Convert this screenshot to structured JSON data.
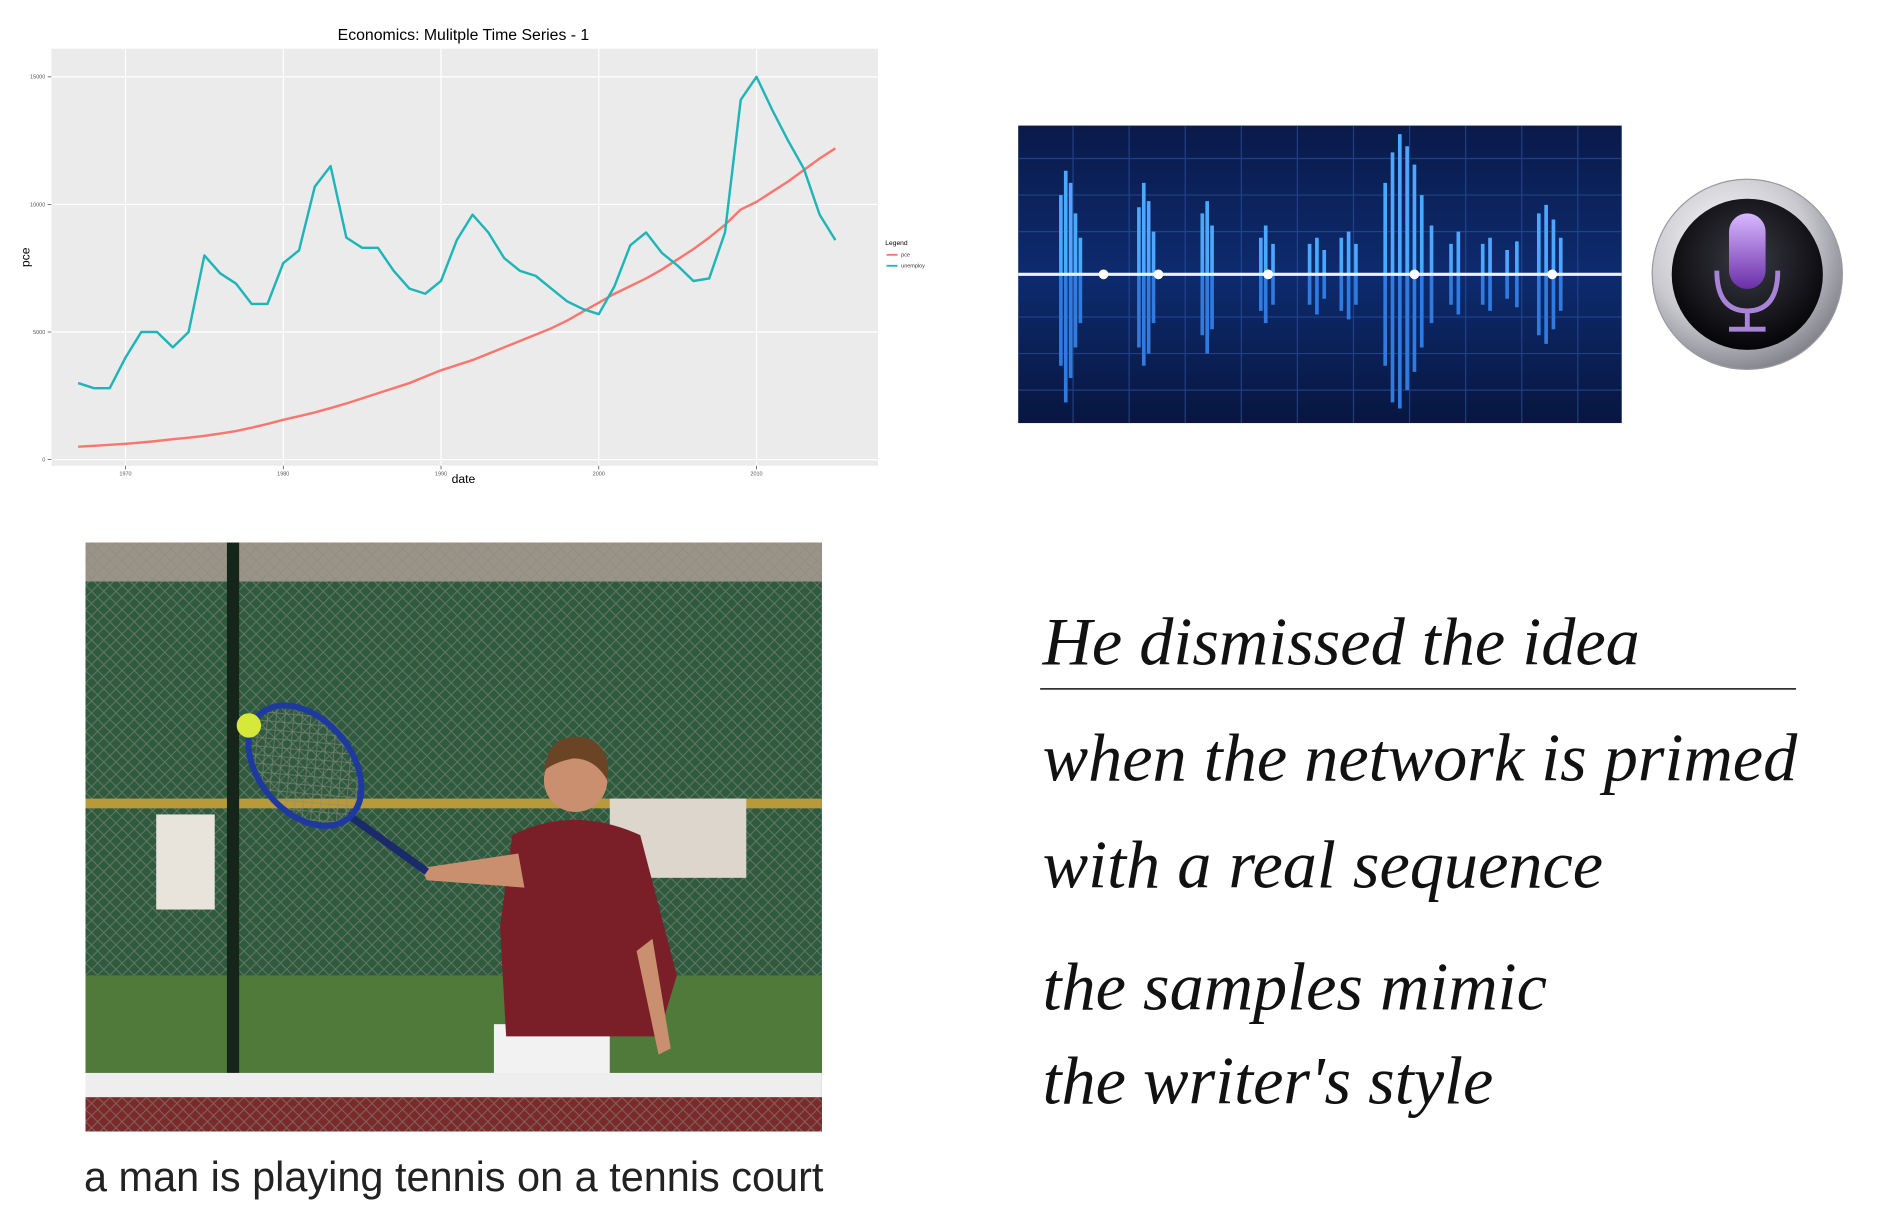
{
  "chart_data": {
    "type": "line",
    "title": "Economics: Mulitple Time Series - 1",
    "x_label": "date",
    "y_label": "pce",
    "legend_title": "Legend",
    "legend": "right",
    "grid": true,
    "xlim": [
      1965.3,
      2017.7
    ],
    "xticks": [
      1970,
      1980,
      1990,
      2000,
      2010
    ],
    "ylim": [
      -240,
      16100
    ],
    "yticks": [
      0,
      5000,
      10000,
      15000
    ],
    "x": [
      1967,
      1968,
      1969,
      1970,
      1971,
      1972,
      1973,
      1974,
      1975,
      1976,
      1977,
      1978,
      1979,
      1980,
      1981,
      1982,
      1983,
      1984,
      1985,
      1986,
      1987,
      1988,
      1989,
      1990,
      1991,
      1992,
      1993,
      1994,
      1995,
      1996,
      1997,
      1998,
      1999,
      2000,
      2001,
      2002,
      2003,
      2004,
      2005,
      2006,
      2007,
      2008,
      2009,
      2010,
      2011,
      2012,
      2013,
      2014,
      2015
    ],
    "series": [
      {
        "name": "pce",
        "color": "#F8766D",
        "values": [
          507,
          540,
          580,
          620,
          670,
          730,
          800,
          860,
          930,
          1020,
          1120,
          1250,
          1400,
          1560,
          1700,
          1850,
          2020,
          2200,
          2400,
          2600,
          2800,
          3000,
          3250,
          3500,
          3700,
          3900,
          4150,
          4400,
          4650,
          4900,
          5150,
          5450,
          5800,
          6150,
          6500,
          6800,
          7100,
          7450,
          7850,
          8250,
          8700,
          9200,
          9800,
          10100,
          10500,
          10900,
          11350,
          11800,
          12200
        ]
      },
      {
        "name": "unemploy",
        "color": "#1FB5B8",
        "values": [
          3000,
          2800,
          2800,
          4000,
          5000,
          5000,
          4400,
          5000,
          8000,
          7300,
          6900,
          6100,
          6100,
          7700,
          8200,
          10700,
          11500,
          8700,
          8300,
          8300,
          7400,
          6700,
          6500,
          7000,
          8600,
          9600,
          8900,
          7900,
          7400,
          7200,
          6700,
          6200,
          5900,
          5700,
          6800,
          8400,
          8900,
          8100,
          7600,
          7000,
          7100,
          8900,
          14100,
          15000,
          13700,
          12500,
          11400,
          9600,
          8600
        ]
      }
    ]
  },
  "caption": "a man is playing tennis on a tennis court",
  "handwriting": {
    "lines": [
      "He dismissed the idea",
      "when the network is primed",
      "with a real sequence",
      "the samples mimic",
      "the writer's style"
    ]
  }
}
